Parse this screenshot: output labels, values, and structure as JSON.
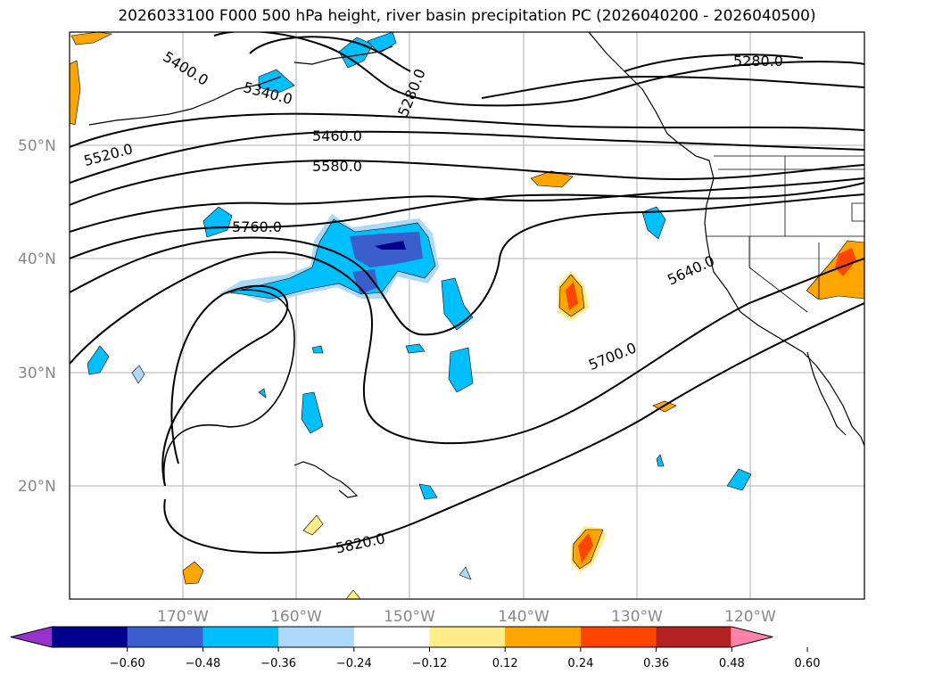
{
  "title": "2026033100 F000 500 hPa height, river basin precipitation PC (2026040200 - 2026040500)",
  "map": {
    "lat_labels": [
      "50°N",
      "40°N",
      "30°N",
      "20°N"
    ],
    "lon_labels": [
      "170°W",
      "160°W",
      "150°W",
      "140°W",
      "130°W",
      "120°W"
    ],
    "contour_labels": [
      "5280.0",
      "5280.0",
      "5340.0",
      "5400.0",
      "5460.0",
      "5520.0",
      "5580.0",
      "5640.0",
      "5700.0",
      "5760.0",
      "5820.0"
    ],
    "line_color": "#000000",
    "grid_color": "#b0b0b0"
  },
  "colorbar": {
    "ticks": [
      "−0.60",
      "−0.48",
      "−0.36",
      "−0.24",
      "−0.12",
      "0.12",
      "0.24",
      "0.36",
      "0.48",
      "0.60"
    ],
    "colors": [
      "#9932cc",
      "#00008b",
      "#3a5fcd",
      "#00bfff",
      "#add8f7",
      "#ffffff",
      "#ffec8b",
      "#ffa500",
      "#ff4500",
      "#b22222",
      "#ff82ab"
    ]
  }
}
